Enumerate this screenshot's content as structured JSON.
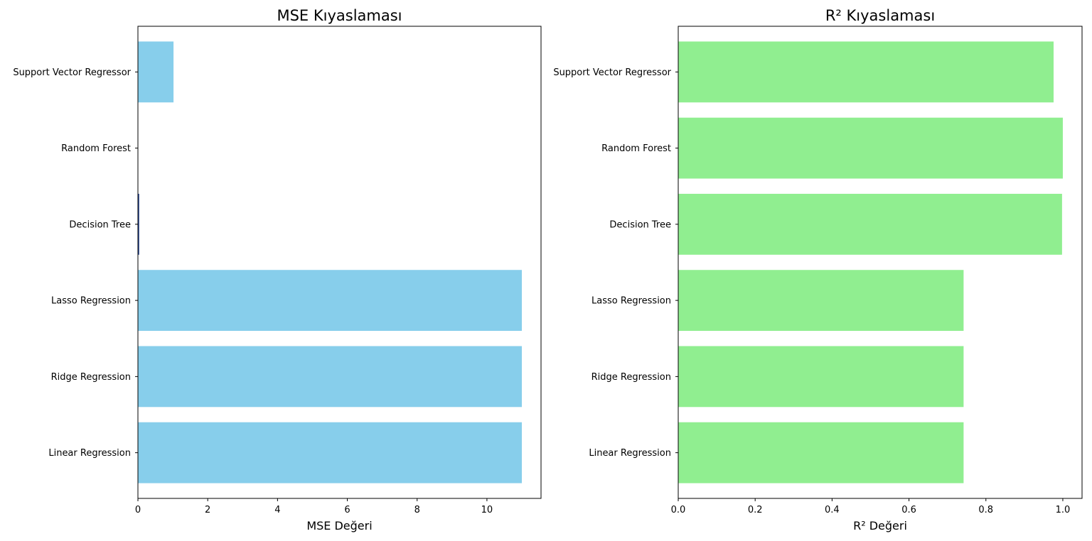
{
  "chart_data": [
    {
      "type": "bar",
      "orientation": "horizontal",
      "title": "MSE Kıyaslaması",
      "xlabel": "MSE Değeri",
      "ylabel": "",
      "categories": [
        "Linear Regression",
        "Ridge Regression",
        "Lasso Regression",
        "Decision Tree",
        "Random Forest",
        "Support Vector Regressor"
      ],
      "values": [
        11.0,
        11.0,
        11.0,
        0.02,
        0.0,
        1.02
      ],
      "xlim": [
        0,
        11.55
      ],
      "xticks": [
        "0",
        "2",
        "4",
        "6",
        "8",
        "10"
      ],
      "bar_color": "#87ceeb",
      "grid": false,
      "legend": "none"
    },
    {
      "type": "bar",
      "orientation": "horizontal",
      "title": "R² Kıyaslaması",
      "xlabel": "R² Değeri",
      "ylabel": "",
      "categories": [
        "Linear Regression",
        "Ridge Regression",
        "Lasso Regression",
        "Decision Tree",
        "Random Forest",
        "Support Vector Regressor"
      ],
      "values": [
        0.742,
        0.742,
        0.742,
        0.998,
        1.0,
        0.976
      ],
      "xlim": [
        0,
        1.05
      ],
      "xticks": [
        "0.0",
        "0.2",
        "0.4",
        "0.6",
        "0.8",
        "1.0"
      ],
      "bar_color": "#90ee90",
      "grid": false,
      "legend": "none"
    }
  ]
}
